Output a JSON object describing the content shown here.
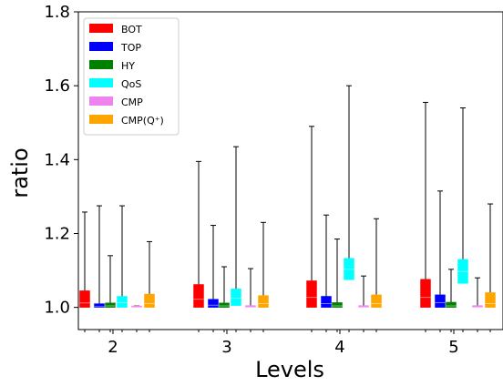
{
  "chart_data": {
    "type": "box",
    "title": "",
    "xlabel": "Levels",
    "ylabel": "ratio",
    "ylim": [
      0.94,
      1.8
    ],
    "yticks": [
      "1.0",
      "1.2",
      "1.4",
      "1.6",
      "1.8"
    ],
    "ytick_values": [
      1.0,
      1.2,
      1.4,
      1.6,
      1.8
    ],
    "categories": [
      "2",
      "3",
      "4",
      "5"
    ],
    "legend_position": "top-left",
    "grid": false,
    "series": [
      {
        "name": "BOT",
        "color": "#ff0000",
        "boxes": [
          {
            "min": 1.0,
            "q1": 1.0,
            "median": 1.012,
            "q3": 1.045,
            "max": 1.258
          },
          {
            "min": 1.0,
            "q1": 1.0,
            "median": 1.022,
            "q3": 1.062,
            "max": 1.395
          },
          {
            "min": 1.0,
            "q1": 1.0,
            "median": 1.027,
            "q3": 1.072,
            "max": 1.49
          },
          {
            "min": 1.0,
            "q1": 1.0,
            "median": 1.027,
            "q3": 1.076,
            "max": 1.555
          }
        ]
      },
      {
        "name": "TOP",
        "color": "#0000ff",
        "boxes": [
          {
            "min": 1.0,
            "q1": 1.0,
            "median": 1.002,
            "q3": 1.01,
            "max": 1.275
          },
          {
            "min": 1.0,
            "q1": 1.0,
            "median": 1.006,
            "q3": 1.022,
            "max": 1.222
          },
          {
            "min": 1.0,
            "q1": 1.0,
            "median": 1.01,
            "q3": 1.03,
            "max": 1.25
          },
          {
            "min": 1.0,
            "q1": 1.0,
            "median": 1.013,
            "q3": 1.034,
            "max": 1.315
          }
        ]
      },
      {
        "name": "HY",
        "color": "#008000",
        "boxes": [
          {
            "min": 1.0,
            "q1": 1.0,
            "median": 1.004,
            "q3": 1.012,
            "max": 1.14
          },
          {
            "min": 1.0,
            "q1": 1.0,
            "median": 1.004,
            "q3": 1.012,
            "max": 1.11
          },
          {
            "min": 1.0,
            "q1": 1.0,
            "median": 1.004,
            "q3": 1.013,
            "max": 1.185
          },
          {
            "min": 1.0,
            "q1": 1.0,
            "median": 1.004,
            "q3": 1.014,
            "max": 1.103
          }
        ]
      },
      {
        "name": "QoS",
        "color": "#00ffff",
        "boxes": [
          {
            "min": 1.0,
            "q1": 1.0,
            "median": 1.013,
            "q3": 1.03,
            "max": 1.275
          },
          {
            "min": 1.0,
            "q1": 1.005,
            "median": 1.025,
            "q3": 1.05,
            "max": 1.435
          },
          {
            "min": 1.0,
            "q1": 1.075,
            "median": 1.103,
            "q3": 1.133,
            "max": 1.6
          },
          {
            "min": 1.0,
            "q1": 1.065,
            "median": 1.097,
            "q3": 1.13,
            "max": 1.54
          }
        ]
      },
      {
        "name": "CMP",
        "color": "#ee82ee",
        "boxes": [
          {
            "min": 1.0,
            "q1": 1.0,
            "median": 1.001,
            "q3": 1.004,
            "max": 1.004
          },
          {
            "min": 1.0,
            "q1": 1.0,
            "median": 1.001,
            "q3": 1.005,
            "max": 1.105
          },
          {
            "min": 1.0,
            "q1": 1.0,
            "median": 1.001,
            "q3": 1.005,
            "max": 1.085
          },
          {
            "min": 1.0,
            "q1": 1.0,
            "median": 1.001,
            "q3": 1.005,
            "max": 1.08
          }
        ]
      },
      {
        "name": "CMP(Q⁺)",
        "color": "#ffa500",
        "boxes": [
          {
            "min": 1.0,
            "q1": 1.0,
            "median": 1.01,
            "q3": 1.036,
            "max": 1.178
          },
          {
            "min": 1.0,
            "q1": 1.0,
            "median": 1.01,
            "q3": 1.032,
            "max": 1.23
          },
          {
            "min": 1.0,
            "q1": 1.0,
            "median": 1.01,
            "q3": 1.034,
            "max": 1.24
          },
          {
            "min": 1.0,
            "q1": 1.0,
            "median": 1.01,
            "q3": 1.04,
            "max": 1.28
          }
        ]
      }
    ]
  }
}
